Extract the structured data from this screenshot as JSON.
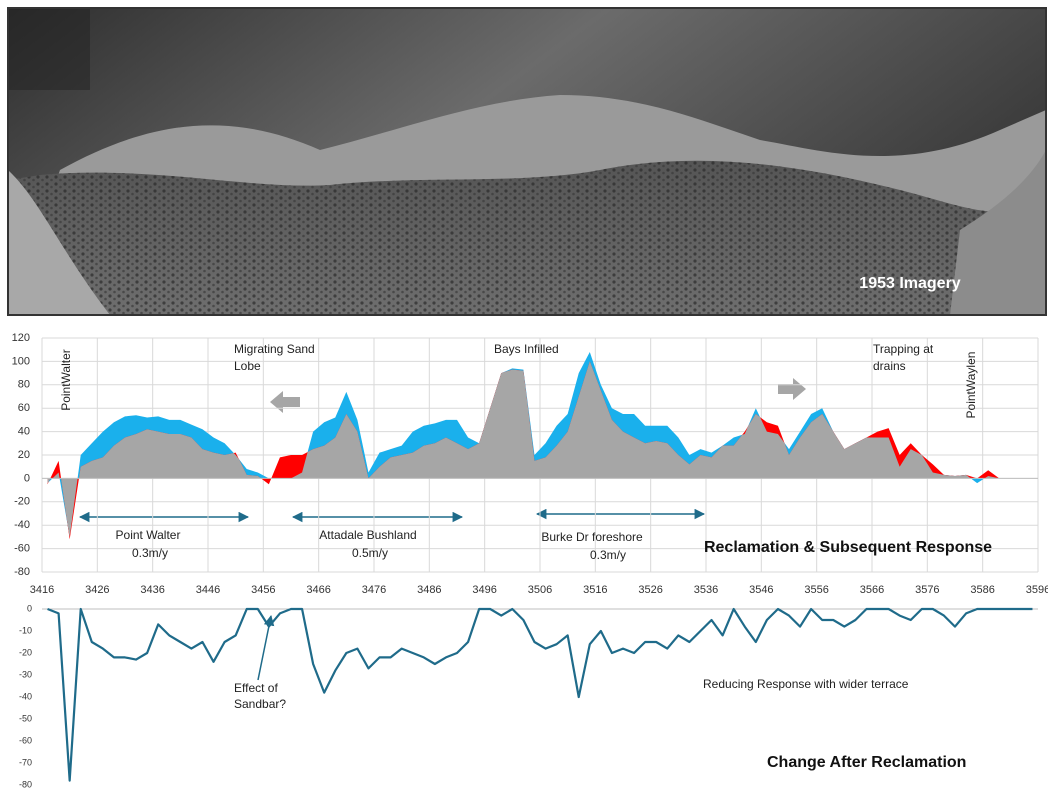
{
  "image": {
    "caption": "1953 Imagery"
  },
  "chart_data": [
    {
      "type": "area",
      "title": "Reclamation & Subsequent Response",
      "x": [
        3417,
        3419,
        3421,
        3423,
        3425,
        3427,
        3429,
        3431,
        3433,
        3435,
        3437,
        3439,
        3441,
        3443,
        3445,
        3447,
        3449,
        3451,
        3453,
        3455,
        3457,
        3459,
        3461,
        3463,
        3465,
        3467,
        3469,
        3471,
        3473,
        3475,
        3477,
        3479,
        3481,
        3483,
        3485,
        3487,
        3489,
        3491,
        3493,
        3495,
        3497,
        3499,
        3501,
        3503,
        3505,
        3507,
        3509,
        3511,
        3513,
        3515,
        3517,
        3519,
        3521,
        3523,
        3525,
        3527,
        3529,
        3531,
        3533,
        3535,
        3537,
        3539,
        3541,
        3543,
        3545,
        3547,
        3549,
        3551,
        3553,
        3555,
        3557,
        3559,
        3561,
        3563,
        3565,
        3567,
        3569,
        3571,
        3573,
        3575,
        3577,
        3579,
        3581,
        3583,
        3585,
        3587,
        3589
      ],
      "series": [
        {
          "color": "#1ab0ec",
          "values": [
            -4,
            5,
            -50,
            20,
            30,
            40,
            48,
            53,
            54,
            52,
            53,
            50,
            50,
            46,
            42,
            35,
            30,
            20,
            8,
            5,
            0,
            0,
            0,
            5,
            40,
            48,
            52,
            74,
            50,
            5,
            22,
            25,
            28,
            40,
            45,
            47,
            50,
            50,
            35,
            30,
            60,
            90,
            94,
            93,
            20,
            30,
            45,
            55,
            90,
            108,
            80,
            60,
            55,
            55,
            45,
            45,
            45,
            35,
            20,
            25,
            22,
            28,
            35,
            38,
            60,
            40,
            38,
            25,
            40,
            55,
            60,
            40,
            25,
            30,
            35,
            35,
            35,
            10,
            25,
            20,
            5,
            3,
            2,
            3,
            -4,
            2,
            0
          ]
        },
        {
          "color": "#a6a6a6",
          "above_color": "#ff0000",
          "values": [
            -5,
            15,
            -52,
            10,
            15,
            18,
            28,
            35,
            38,
            42,
            40,
            38,
            38,
            35,
            25,
            22,
            20,
            22,
            3,
            2,
            -5,
            18,
            20,
            20,
            25,
            28,
            35,
            55,
            40,
            0,
            10,
            18,
            20,
            22,
            28,
            30,
            35,
            30,
            25,
            30,
            60,
            90,
            93,
            92,
            15,
            18,
            28,
            40,
            70,
            100,
            75,
            50,
            40,
            35,
            30,
            32,
            30,
            20,
            12,
            20,
            18,
            28,
            28,
            40,
            55,
            48,
            45,
            20,
            35,
            48,
            55,
            40,
            25,
            30,
            35,
            40,
            43,
            20,
            30,
            20,
            12,
            3,
            2,
            3,
            0,
            7,
            0
          ]
        }
      ],
      "xlim": [
        3416,
        3596
      ],
      "xticks": [
        3416,
        3426,
        3436,
        3446,
        3456,
        3466,
        3476,
        3486,
        3496,
        3506,
        3516,
        3526,
        3536,
        3546,
        3556,
        3566,
        3576,
        3586,
        3596
      ],
      "ylim": [
        -80,
        120
      ],
      "yticks": [
        -80,
        -60,
        -40,
        -20,
        0,
        20,
        40,
        60,
        80,
        100,
        120
      ],
      "grid": true,
      "annotations": [
        "PointWalter",
        "Migrating Sand",
        "Lobe",
        "Bays Infilled",
        "Trapping at",
        "drains",
        "PointWaylen",
        "Point Walter",
        "0.3m/y",
        "Attadale Bushland",
        "0.5m/y",
        "Burke Dr foreshore",
        "0.3m/y"
      ]
    },
    {
      "type": "line",
      "title": "Change After Reclamation",
      "x": [
        3417,
        3419,
        3421,
        3423,
        3425,
        3427,
        3429,
        3431,
        3433,
        3435,
        3437,
        3439,
        3441,
        3443,
        3445,
        3447,
        3449,
        3451,
        3453,
        3455,
        3457,
        3459,
        3461,
        3463,
        3465,
        3467,
        3469,
        3471,
        3473,
        3475,
        3477,
        3479,
        3481,
        3483,
        3485,
        3487,
        3489,
        3491,
        3493,
        3495,
        3497,
        3499,
        3501,
        3503,
        3505,
        3507,
        3509,
        3511,
        3513,
        3515,
        3517,
        3519,
        3521,
        3523,
        3525,
        3527,
        3529,
        3531,
        3533,
        3535,
        3537,
        3539,
        3541,
        3543,
        3545,
        3547,
        3549,
        3551,
        3553,
        3555,
        3557,
        3559,
        3561,
        3563,
        3565,
        3567,
        3569,
        3571,
        3573,
        3575,
        3577,
        3579,
        3581,
        3583,
        3585,
        3587,
        3589,
        3591,
        3593,
        3595
      ],
      "series": [
        {
          "color": "#1f6b8a",
          "values": [
            0,
            -2,
            -78,
            0,
            -15,
            -18,
            -22,
            -22,
            -23,
            -20,
            -7,
            -12,
            -15,
            -18,
            -15,
            -24,
            -15,
            -12,
            0,
            0,
            -8,
            -2,
            0,
            0,
            -25,
            -38,
            -28,
            -20,
            -18,
            -27,
            -22,
            -22,
            -18,
            -20,
            -22,
            -25,
            -22,
            -20,
            -15,
            0,
            0,
            -3,
            0,
            -5,
            -15,
            -18,
            -16,
            -12,
            -40,
            -16,
            -10,
            -20,
            -18,
            -20,
            -15,
            -15,
            -18,
            -12,
            -15,
            -10,
            -5,
            -12,
            0,
            -8,
            -15,
            -5,
            0,
            -3,
            -8,
            0,
            -5,
            -5,
            -8,
            -5,
            0,
            0,
            0,
            -3,
            -5,
            0,
            0,
            -3,
            -8,
            -2,
            0,
            0,
            0,
            0,
            0,
            0
          ]
        }
      ],
      "xlim": [
        3416,
        3596
      ],
      "ylim": [
        -80,
        0
      ],
      "yticks": [
        -80,
        -70,
        -60,
        -50,
        -40,
        -30,
        -20,
        -10,
        0
      ],
      "annotations": [
        "Effect of",
        "Sandbar?",
        "Reducing Response with wider terrace"
      ]
    }
  ]
}
